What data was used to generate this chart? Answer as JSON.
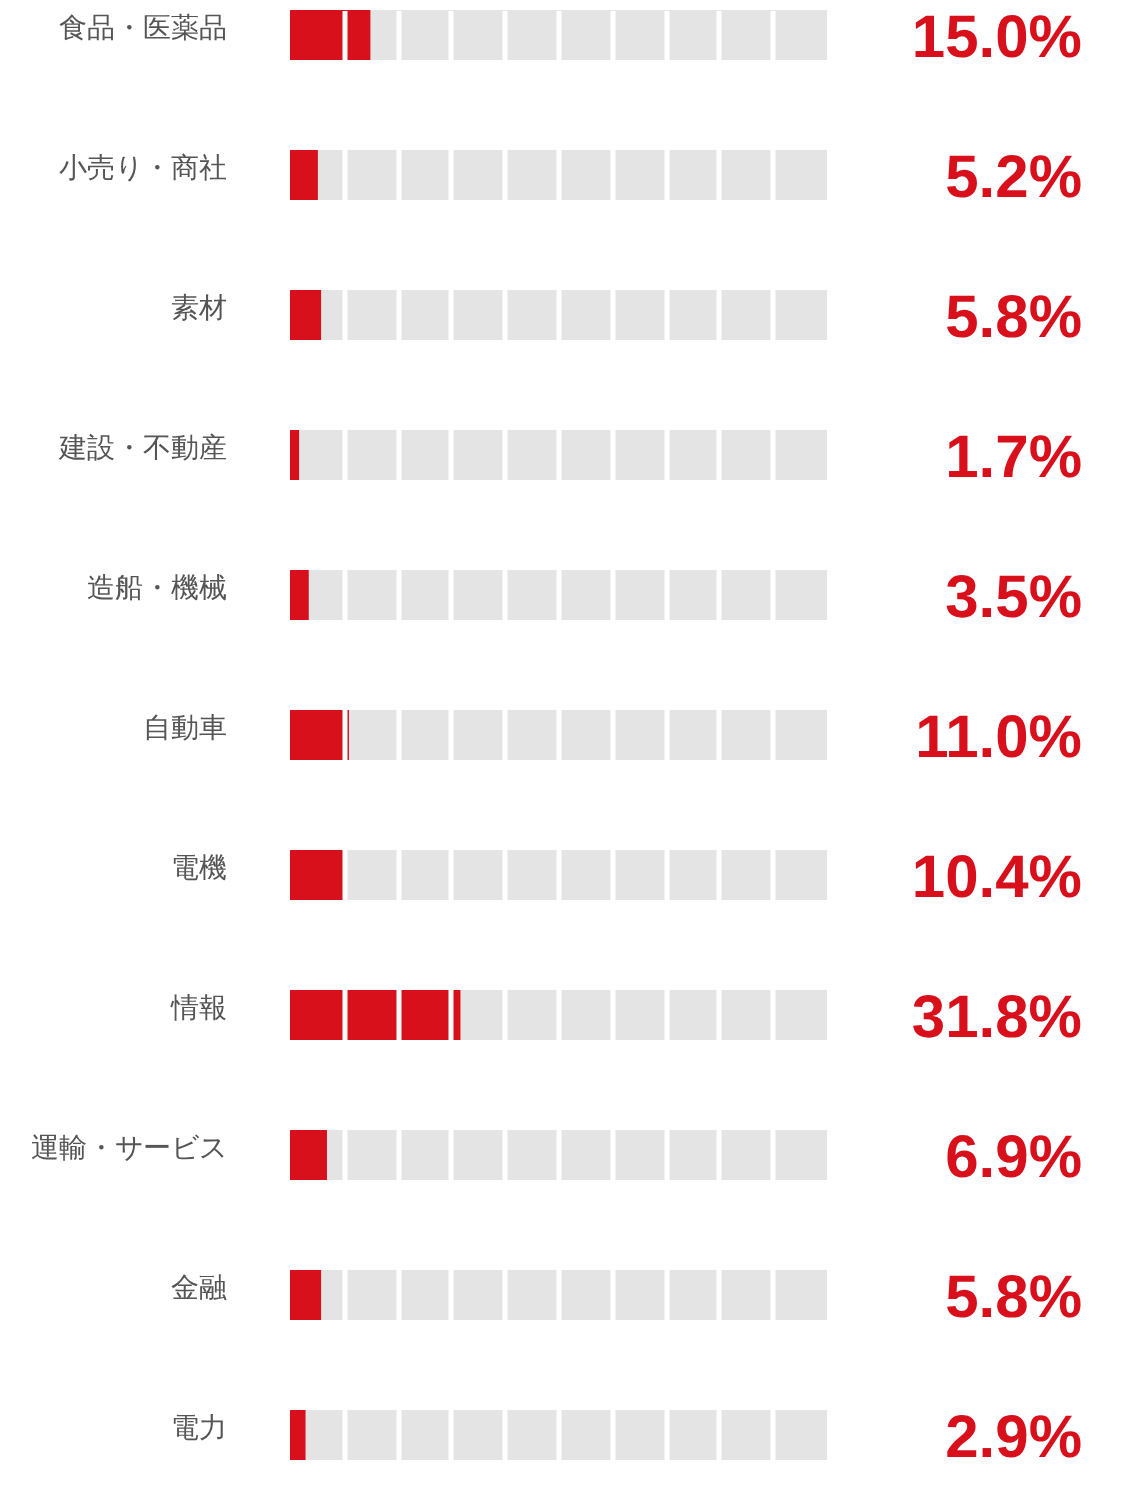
{
  "chart_data": {
    "type": "bar",
    "orientation": "horizontal",
    "categories": [
      "食品・医薬品",
      "小売り・商社",
      "素材",
      "建設・不動産",
      "造船・機械",
      "自動車",
      "電機",
      "情報",
      "運輸・サービス",
      "金融",
      "電力"
    ],
    "values": [
      15.0,
      5.2,
      5.8,
      1.7,
      3.5,
      11.0,
      10.4,
      31.8,
      6.9,
      5.8,
      2.9
    ],
    "color": "#d7101c",
    "value_labels": [
      "15.0%",
      "5.2%",
      "5.8%",
      "1.7%",
      "3.5%",
      "11.0%",
      "10.4%",
      "31.8%",
      "6.9%",
      "5.8%",
      "2.9%"
    ],
    "xlim": [
      0,
      100
    ],
    "xticks": [
      10,
      20,
      30,
      40,
      50,
      60,
      70,
      80,
      90
    ],
    "grid": true,
    "tick_labels": "y"
  }
}
